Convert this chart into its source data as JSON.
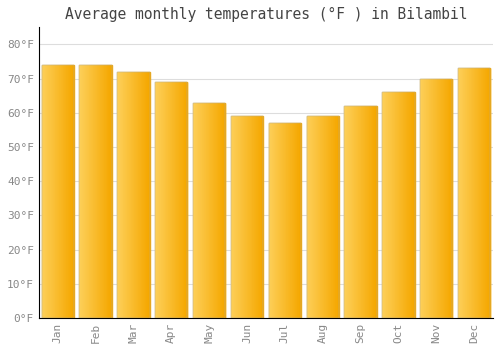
{
  "title": "Average monthly temperatures (°F ) in Bilambil",
  "months": [
    "Jan",
    "Feb",
    "Mar",
    "Apr",
    "May",
    "Jun",
    "Jul",
    "Aug",
    "Sep",
    "Oct",
    "Nov",
    "Dec"
  ],
  "values": [
    74,
    74,
    72,
    69,
    63,
    59,
    57,
    59,
    62,
    66,
    70,
    73
  ],
  "bar_color_left": "#FDD05A",
  "bar_color_right": "#F5A800",
  "background_color": "#FFFFFF",
  "plot_bg_color": "#FFFFFF",
  "grid_color": "#DDDDDD",
  "text_color": "#888888",
  "title_color": "#444444",
  "border_color": "#000000",
  "ylim": [
    0,
    85
  ],
  "yticks": [
    0,
    10,
    20,
    30,
    40,
    50,
    60,
    70,
    80
  ],
  "ytick_labels": [
    "0°F",
    "10°F",
    "20°F",
    "30°F",
    "40°F",
    "50°F",
    "60°F",
    "70°F",
    "80°F"
  ],
  "title_fontsize": 10.5,
  "tick_fontsize": 8,
  "font_family": "monospace",
  "bar_width": 0.85,
  "n_gradient_steps": 50
}
